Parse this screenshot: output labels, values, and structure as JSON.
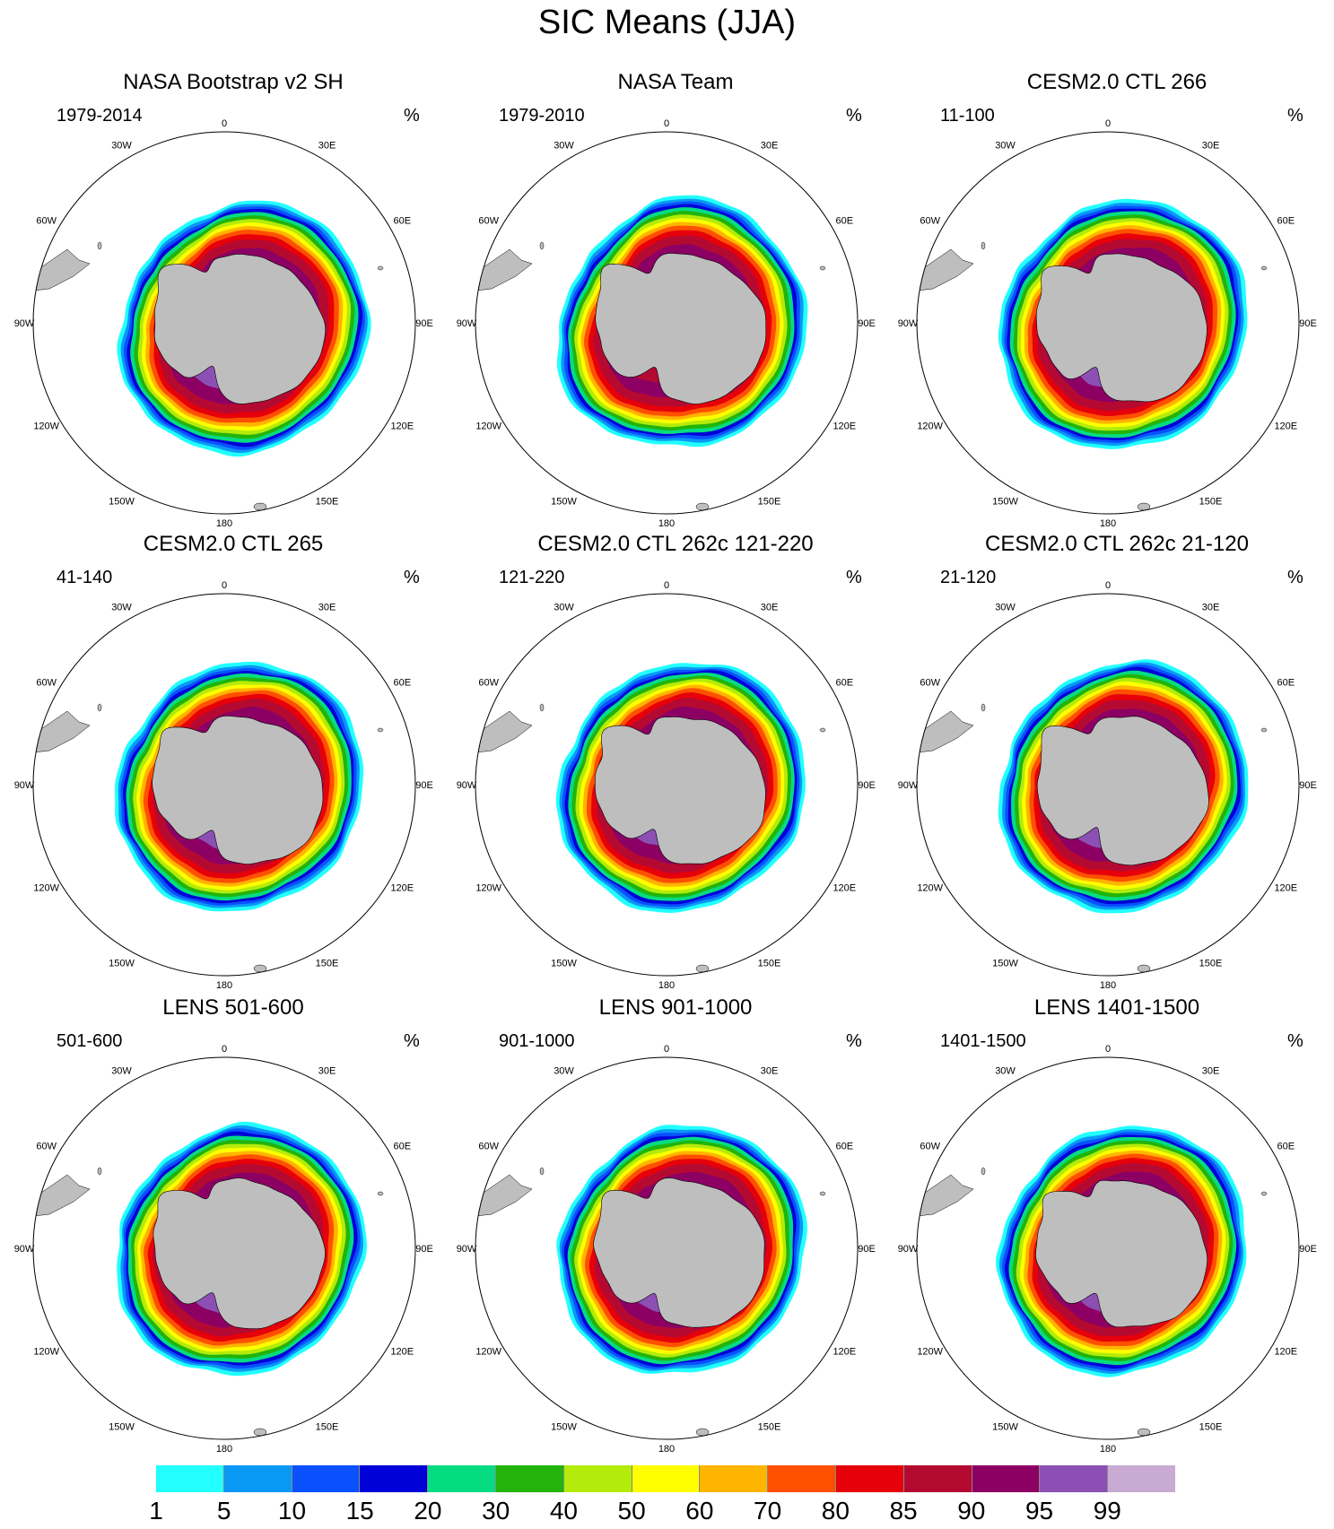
{
  "figure": {
    "title": "SIC Means (JJA)"
  },
  "lon_labels": [
    "0",
    "30E",
    "60E",
    "90E",
    "120E",
    "150E",
    "180",
    "150W",
    "120W",
    "90W",
    "60W",
    "30W"
  ],
  "panels": [
    {
      "title": "NASA Bootstrap v2 SH",
      "period": "1979-2014",
      "unit": "%"
    },
    {
      "title": "NASA Team",
      "period": "1979-2010",
      "unit": "%"
    },
    {
      "title": "CESM2.0 CTL 266",
      "period": "11-100",
      "unit": "%"
    },
    {
      "title": "CESM2.0 CTL 265",
      "period": "41-140",
      "unit": "%"
    },
    {
      "title": "CESM2.0 CTL 262c 121-220",
      "period": "121-220",
      "unit": "%"
    },
    {
      "title": "CESM2.0 CTL 262c 21-120",
      "period": "21-120",
      "unit": "%"
    },
    {
      "title": "LENS 501-600",
      "period": "501-600",
      "unit": "%"
    },
    {
      "title": "LENS 901-1000",
      "period": "901-1000",
      "unit": "%"
    },
    {
      "title": "LENS 1401-1500",
      "period": "1401-1500",
      "unit": "%"
    }
  ],
  "colorbar": {
    "labels": [
      "1",
      "5",
      "10",
      "15",
      "20",
      "30",
      "40",
      "50",
      "60",
      "70",
      "80",
      "85",
      "90",
      "95",
      "99"
    ],
    "colors": [
      "#22ffff",
      "#0a98f5",
      "#0a50ff",
      "#0000d8",
      "#05dc82",
      "#22b40a",
      "#b4eb0a",
      "#ffff00",
      "#ffb400",
      "#ff5000",
      "#e6000a",
      "#b40a32",
      "#8c0064",
      "#8c50b4",
      "#c8aad2"
    ]
  },
  "colors": {
    "land": "#bebebe",
    "ocean": "#ffffff"
  }
}
